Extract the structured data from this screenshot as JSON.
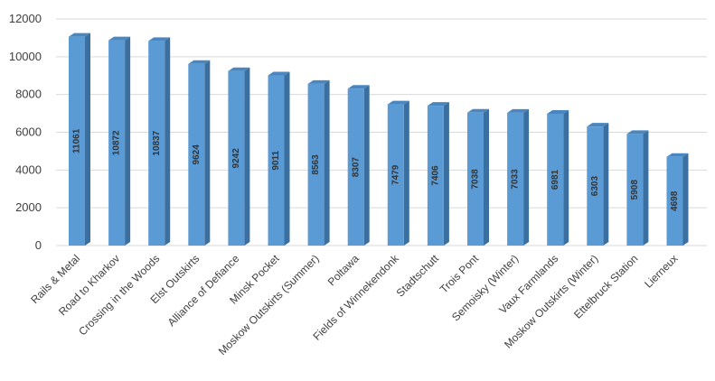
{
  "chart_data": {
    "type": "bar",
    "style": "3d-column",
    "categories": [
      "Rails & Metal",
      "Road to Kharkov",
      "Crossing in the Woods",
      "Elst Outskirts",
      "Alliance of Defiance",
      "Minsk Pocket",
      "Moskow Outskirts (Summer)",
      "Poltawa",
      "Fields of Winnekendonk",
      "Stadtschutt",
      "Trois Pont",
      "Semoisky (Winter)",
      "Vaux Farmlands",
      "Moskow Outskirts (Winter)",
      "Ettelbruck Station",
      "Lierneux"
    ],
    "values": [
      11061,
      10872,
      10837,
      9624,
      9242,
      9011,
      8563,
      8307,
      7479,
      7406,
      7038,
      7033,
      6981,
      6303,
      5908,
      4698
    ],
    "data_labels": [
      "11061",
      "10872",
      "10837",
      "9624",
      "9242",
      "9011",
      "8563",
      "8307",
      "7479",
      "7406",
      "7038",
      "7033",
      "6981",
      "6303",
      "5908",
      "4698"
    ],
    "yticks": [
      "0",
      "2000",
      "4000",
      "6000",
      "8000",
      "10000",
      "12000"
    ],
    "ylim": [
      0,
      12000
    ],
    "title": "",
    "xlabel": "",
    "ylabel": "",
    "grid": true,
    "legend": "none",
    "colors": {
      "bar_front": "#5b9bd5",
      "bar_side": "#3a6f9f",
      "bar_top": "#4a86bf",
      "grid": "#d9d9d9",
      "text": "#404040"
    }
  }
}
